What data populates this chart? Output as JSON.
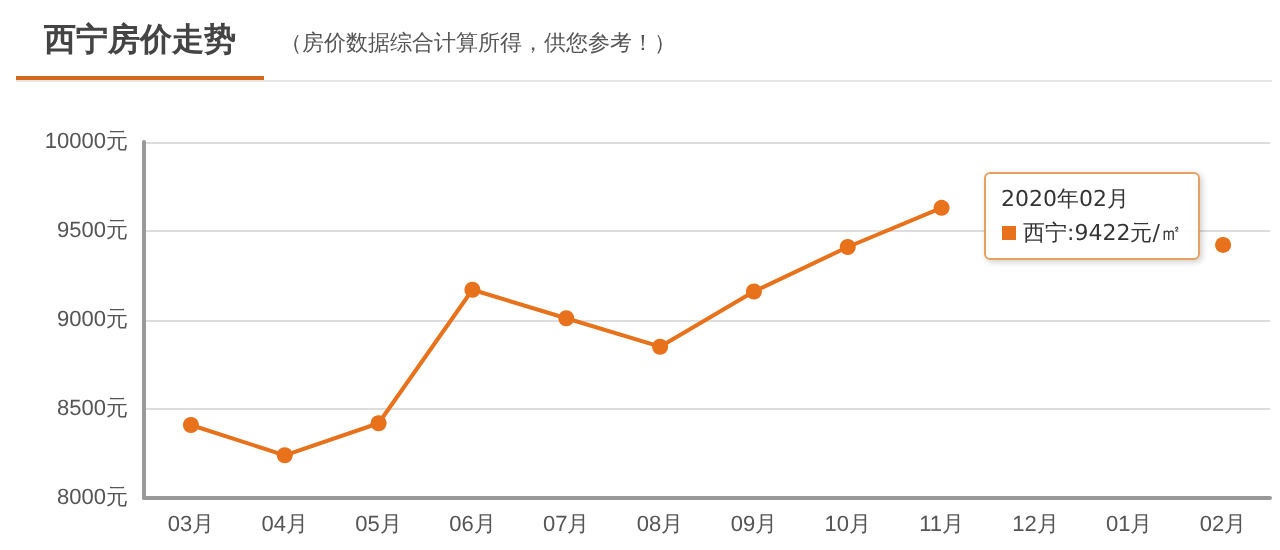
{
  "chart_data": {
    "type": "line",
    "title": "西宁房价走势",
    "subtitle": "（房价数据综合计算所得，供您参考！）",
    "categories": [
      "03月",
      "04月",
      "05月",
      "06月",
      "07月",
      "08月",
      "09月",
      "10月",
      "11月",
      "12月",
      "01月",
      "02月"
    ],
    "series": [
      {
        "color": "#e8711c",
        "values": [
          8410,
          8240,
          8420,
          9170,
          9010,
          8850,
          9160,
          9410,
          9630,
          null,
          null,
          9422
        ]
      }
    ],
    "ylim": [
      8000,
      10000
    ],
    "yticks": [
      {
        "value": 8000,
        "label": "8000元"
      },
      {
        "value": 8500,
        "label": "8500元"
      },
      {
        "value": 9000,
        "label": "9000元"
      },
      {
        "value": 9500,
        "label": "9500元"
      },
      {
        "value": 10000,
        "label": "10000元"
      }
    ],
    "annotations": [
      "2020年02月",
      "西宁:9422元/㎡"
    ],
    "grid": "y",
    "marker": "circle",
    "line_style": "solid"
  }
}
